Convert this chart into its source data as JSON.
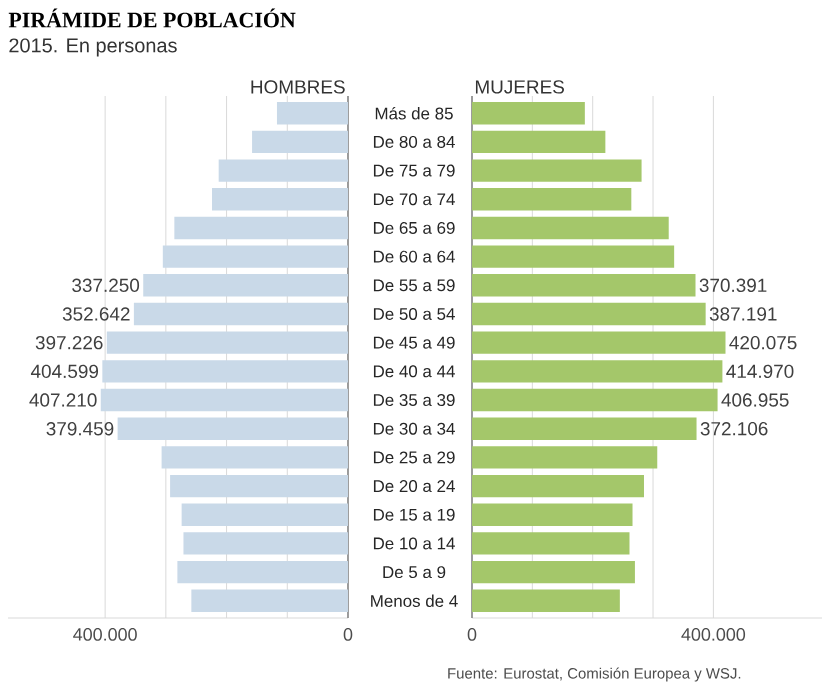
{
  "chart_data": [
    {
      "type": "bar",
      "orientation": "horizontal",
      "title": "PIRÁMIDE DE POBLACIÓN",
      "subtitle": "2015. En personas",
      "series": [
        {
          "name": "HOMBRES",
          "color": "#c9d9e8",
          "values": [
            117000,
            158000,
            213000,
            224000,
            286000,
            305000,
            337250,
            352642,
            397226,
            404599,
            407210,
            379459,
            307000,
            293000,
            274000,
            271000,
            281000,
            258000
          ],
          "value_labels": [
            null,
            null,
            null,
            null,
            null,
            null,
            "337.250",
            "352.642",
            "397.226",
            "404.599",
            "407.210",
            "379.459",
            null,
            null,
            null,
            null,
            null,
            null
          ]
        }
      ],
      "xlim": [
        560000,
        0
      ],
      "xticks": [
        {
          "value": 400000,
          "label": "400.000"
        },
        {
          "value": 300000,
          "label": null
        },
        {
          "value": 200000,
          "label": null
        },
        {
          "value": 100000,
          "label": null
        },
        {
          "value": 0,
          "label": "0"
        }
      ],
      "grid": "x",
      "tick_labels": "x"
    },
    {
      "type": "bar",
      "orientation": "horizontal",
      "categories": [
        "Más de 85",
        "De 80 a 84",
        "De 75 a 79",
        "De 70 a 74",
        "De 65 a 69",
        "De 60 a 64",
        "De 55 a 59",
        "De 50 a 54",
        "De 45 a 49",
        "De 40 a 44",
        "De 35 a 39",
        "De 30 a 34",
        "De 25 a 29",
        "De 20 a 24",
        "De 15 a 19",
        "De 10 a 14",
        "De 5 a 9",
        "Menos de 4"
      ],
      "series": [
        {
          "name": "MUJERES",
          "color": "#a4c76a",
          "values": [
            187000,
            221000,
            281000,
            264000,
            326000,
            335000,
            370391,
            387191,
            420075,
            414970,
            406955,
            372106,
            307000,
            285000,
            266000,
            261000,
            270000,
            245000
          ],
          "value_labels": [
            null,
            null,
            null,
            null,
            null,
            null,
            "370.391",
            "387.191",
            "420.075",
            "414.970",
            "406.955",
            "372.106",
            null,
            null,
            null,
            null,
            null,
            null
          ]
        }
      ],
      "xlim": [
        0,
        580000
      ],
      "xticks": [
        {
          "value": 0,
          "label": "0"
        },
        {
          "value": 100000,
          "label": null
        },
        {
          "value": 200000,
          "label": null
        },
        {
          "value": 300000,
          "label": null
        },
        {
          "value": 400000,
          "label": "400.000"
        }
      ],
      "grid": "x",
      "annotations": [
        "Fuente: Eurostat, Comisión Europea y WSJ."
      ]
    }
  ]
}
